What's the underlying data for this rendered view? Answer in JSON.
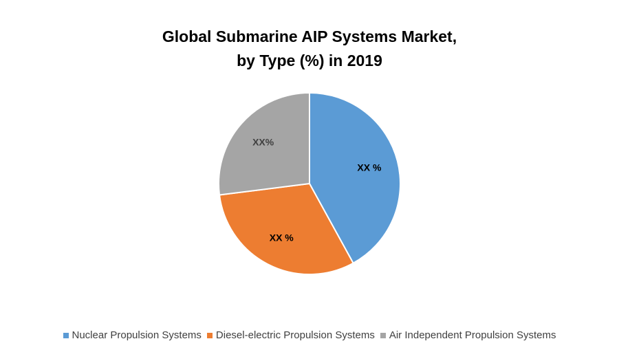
{
  "chart_data": {
    "type": "pie",
    "title": [
      "Global Submarine AIP Systems Market,",
      "by Type (%) in 2019"
    ],
    "series": [
      {
        "name": "Nuclear Propulsion Systems",
        "value": 42,
        "label": "XX %",
        "color": "#5B9BD5"
      },
      {
        "name": "Diesel-electric Propulsion Systems",
        "value": 31,
        "label": "XX %",
        "color": "#ED7D31"
      },
      {
        "name": "Air Independent Propulsion Systems",
        "value": 27,
        "label": "XX%",
        "color": "#A5A5A5"
      }
    ],
    "legend_position": "bottom"
  }
}
